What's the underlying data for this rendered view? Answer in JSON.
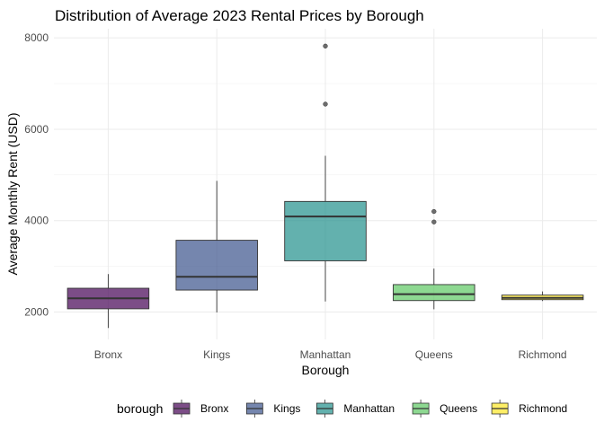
{
  "chart_data": {
    "type": "boxplot",
    "title": "Distribution of Average 2023 Rental Prices by Borough",
    "xlabel": "Borough",
    "ylabel": "Average Monthly Rent (USD)",
    "ylim": [
      1400,
      8200
    ],
    "yticks": [
      2000,
      4000,
      6000,
      8000
    ],
    "ytick_labels": [
      "2000",
      "4000",
      "6000",
      "8000"
    ],
    "grid": true,
    "legend_title": "borough",
    "legend_position": "bottom",
    "categories": [
      "Bronx",
      "Kings",
      "Manhattan",
      "Queens",
      "Richmond"
    ],
    "colors": [
      "#440154",
      "#3b528b",
      "#21908c",
      "#5dc863",
      "#fde725"
    ],
    "boxes": [
      {
        "name": "Bronx",
        "whisker_low": 1650,
        "q1": 2070,
        "median": 2300,
        "q3": 2520,
        "whisker_high": 2830,
        "outliers": []
      },
      {
        "name": "Kings",
        "whisker_low": 1990,
        "q1": 2480,
        "median": 2770,
        "q3": 3570,
        "whisker_high": 4870,
        "outliers": []
      },
      {
        "name": "Manhattan",
        "whisker_low": 2230,
        "q1": 3120,
        "median": 4090,
        "q3": 4420,
        "whisker_high": 5420,
        "outliers": [
          6550,
          7820
        ]
      },
      {
        "name": "Queens",
        "whisker_low": 2060,
        "q1": 2250,
        "median": 2390,
        "q3": 2600,
        "whisker_high": 2950,
        "outliers": [
          3970,
          4200
        ]
      },
      {
        "name": "Richmond",
        "whisker_low": 2240,
        "q1": 2270,
        "median": 2310,
        "q3": 2370,
        "whisker_high": 2450,
        "outliers": []
      }
    ]
  }
}
